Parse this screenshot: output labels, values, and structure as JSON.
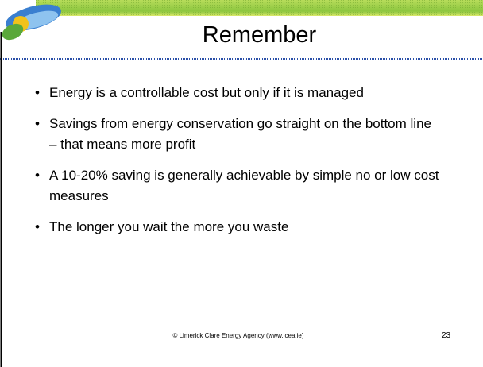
{
  "slide": {
    "title": "Remember",
    "bullets": [
      "Energy is a controllable cost but only if it is managed",
      "Savings from energy conservation go straight on the bottom line – that means more profit",
      "A 10-20% saving is generally achievable by simple no or low cost measures",
      "The longer you wait the more you waste"
    ],
    "footer": "© Limerick Clare Energy Agency (www.lcea.ie)",
    "page_number": "23"
  }
}
